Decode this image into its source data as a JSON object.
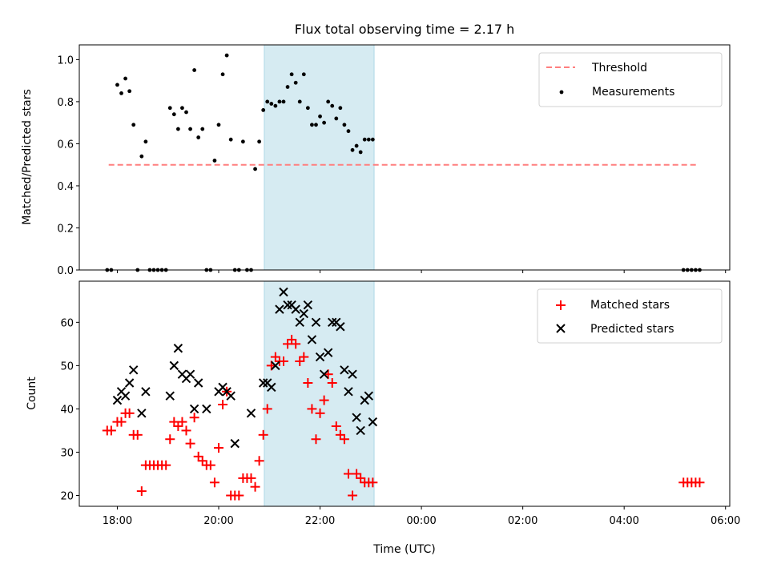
{
  "chart_data": {
    "title": "Flux total observing time = 2.17 h",
    "xlabel": "Time (UTC)",
    "x_unit": "hours UTC",
    "x_range": [
      "17:15",
      "06:05"
    ],
    "x_ticks": [
      {
        "value": 18,
        "label": "18:00"
      },
      {
        "value": 20,
        "label": "20:00"
      },
      {
        "value": 22,
        "label": "22:00"
      },
      {
        "value": 24,
        "label": "00:00"
      },
      {
        "value": 26,
        "label": "02:00"
      },
      {
        "value": 28,
        "label": "04:00"
      },
      {
        "value": 30,
        "label": "06:00"
      }
    ],
    "shaded_interval": {
      "start": "20:54",
      "end": "23:04",
      "color": "#add8e6"
    },
    "panels": [
      {
        "type": "scatter",
        "ylabel": "Matched/Predicted stars",
        "ylim": [
          0,
          1.07
        ],
        "yticks": [
          "0.0",
          "0.2",
          "0.4",
          "0.6",
          "0.8",
          "1.0"
        ],
        "legend_position": "top-right",
        "series": [
          {
            "name": "Threshold",
            "kind": "dashed-line",
            "color": "#ff7f7f",
            "x": [
              17.83,
              29.47
            ],
            "y": [
              0.5,
              0.5
            ]
          },
          {
            "name": "Measurements",
            "kind": "dot",
            "color": "#000000",
            "x": [
              17.8,
              17.88,
              18.0,
              18.08,
              18.16,
              18.24,
              18.32,
              18.4,
              18.48,
              18.56,
              18.64,
              18.72,
              18.8,
              18.88,
              18.96,
              19.04,
              19.12,
              19.2,
              19.28,
              19.36,
              19.44,
              19.52,
              19.6,
              19.68,
              19.76,
              19.84,
              19.92,
              20.0,
              20.08,
              20.16,
              20.24,
              20.32,
              20.4,
              20.48,
              20.56,
              20.64,
              20.72,
              20.8,
              20.88,
              20.96,
              21.04,
              21.12,
              21.2,
              21.28,
              21.36,
              21.44,
              21.52,
              21.6,
              21.68,
              21.76,
              21.84,
              21.92,
              22.0,
              22.08,
              22.16,
              22.24,
              22.32,
              22.4,
              22.48,
              22.56,
              22.64,
              22.72,
              22.8,
              22.88,
              22.96,
              23.04,
              29.17,
              29.25,
              29.33,
              29.41,
              29.49
            ],
            "y": [
              0.0,
              0.0,
              0.88,
              0.84,
              0.91,
              0.85,
              0.69,
              0.0,
              0.54,
              0.61,
              0.0,
              0.0,
              0.0,
              0.0,
              0.0,
              0.77,
              0.74,
              0.67,
              0.77,
              0.75,
              0.67,
              0.95,
              0.63,
              0.67,
              0.0,
              0.0,
              0.52,
              0.69,
              0.93,
              1.02,
              0.62,
              0.0,
              0.0,
              0.61,
              0.0,
              0.0,
              0.48,
              0.61,
              0.76,
              0.8,
              0.79,
              0.78,
              0.8,
              0.8,
              0.87,
              0.93,
              0.89,
              0.8,
              0.93,
              0.77,
              0.69,
              0.69,
              0.73,
              0.7,
              0.8,
              0.78,
              0.72,
              0.77,
              0.69,
              0.66,
              0.57,
              0.59,
              0.56,
              0.62,
              0.62,
              0.62,
              0.0,
              0.0,
              0.0,
              0.0,
              0.0
            ]
          }
        ]
      },
      {
        "type": "scatter",
        "ylabel": "Count",
        "ylim": [
          17.5,
          69.5
        ],
        "yticks": [
          "20",
          "30",
          "40",
          "50",
          "60"
        ],
        "legend_position": "top-right",
        "series": [
          {
            "name": "Matched stars",
            "marker": "plus",
            "color": "#ff0000",
            "x": [
              17.8,
              17.88,
              18.0,
              18.08,
              18.16,
              18.24,
              18.32,
              18.4,
              18.48,
              18.56,
              18.64,
              18.72,
              18.8,
              18.88,
              18.96,
              19.04,
              19.12,
              19.2,
              19.28,
              19.36,
              19.44,
              19.52,
              19.6,
              19.68,
              19.76,
              19.84,
              19.92,
              20.0,
              20.08,
              20.16,
              20.24,
              20.32,
              20.4,
              20.48,
              20.56,
              20.64,
              20.72,
              20.8,
              20.88,
              20.96,
              21.04,
              21.12,
              21.2,
              21.28,
              21.36,
              21.44,
              21.52,
              21.6,
              21.68,
              21.76,
              21.84,
              21.92,
              22.0,
              22.08,
              22.16,
              22.24,
              22.32,
              22.4,
              22.48,
              22.56,
              22.64,
              22.72,
              22.8,
              22.88,
              22.96,
              23.04,
              29.17,
              29.25,
              29.33,
              29.41,
              29.49
            ],
            "y": [
              35,
              35,
              37,
              37,
              39,
              39,
              34,
              34,
              21,
              27,
              27,
              27,
              27,
              27,
              27,
              33,
              37,
              36,
              37,
              35,
              32,
              38,
              29,
              28,
              27,
              27,
              23,
              31,
              41,
              44,
              20,
              20,
              20,
              24,
              24,
              24,
              22,
              28,
              34,
              40,
              50,
              52,
              51,
              51,
              55,
              56,
              55,
              51,
              52,
              46,
              40,
              33,
              39,
              42,
              48,
              46,
              36,
              34,
              33,
              25,
              20,
              25,
              24,
              23,
              23,
              23,
              23,
              23,
              23,
              23,
              23
            ]
          },
          {
            "name": "Predicted stars",
            "marker": "x",
            "color": "#000000",
            "x": [
              18.0,
              18.08,
              18.16,
              18.24,
              18.32,
              18.48,
              18.56,
              19.04,
              19.12,
              19.2,
              19.28,
              19.36,
              19.44,
              19.52,
              19.6,
              19.76,
              20.0,
              20.08,
              20.16,
              20.24,
              20.32,
              20.64,
              20.88,
              20.96,
              21.04,
              21.12,
              21.2,
              21.28,
              21.36,
              21.44,
              21.52,
              21.6,
              21.68,
              21.76,
              21.84,
              21.92,
              22.0,
              22.08,
              22.16,
              22.24,
              22.32,
              22.4,
              22.48,
              22.56,
              22.64,
              22.72,
              22.8,
              22.88,
              22.96,
              23.04
            ],
            "y": [
              42,
              44,
              43,
              46,
              49,
              39,
              44,
              43,
              50,
              54,
              48,
              47,
              48,
              40,
              46,
              40,
              44,
              45,
              44,
              43,
              32,
              39,
              46,
              46,
              45,
              50,
              63,
              67,
              64,
              64,
              63,
              60,
              62,
              64,
              56,
              60,
              52,
              48,
              53,
              60,
              60,
              59,
              49,
              44,
              48,
              38,
              35,
              42,
              43,
              37
            ]
          }
        ]
      }
    ]
  }
}
